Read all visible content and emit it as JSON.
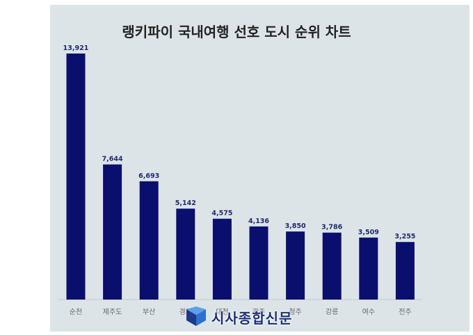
{
  "chart_data": {
    "type": "bar",
    "title": "랭키파이 국내여행 선호 도시 순위 차트",
    "categories": [
      "순천",
      "제주도",
      "부산",
      "경주",
      "대전",
      "광주",
      "청주",
      "강릉",
      "여수",
      "전주"
    ],
    "values": [
      13921,
      7644,
      6693,
      5142,
      4575,
      4136,
      3850,
      3786,
      3509,
      3255
    ],
    "value_labels": [
      "13,921",
      "7,644",
      "6,693",
      "5,142",
      "4,575",
      "4,136",
      "3,850",
      "3,786",
      "3,509",
      "3,255"
    ],
    "ylim": [
      0,
      13921
    ],
    "grid": false,
    "legend": "none",
    "bar_color": "#0a0f6e",
    "panel_color": "#dde4e8",
    "label_color": "#1e2a6b"
  },
  "watermark": {
    "text": "시사종합신문",
    "icon": "newspaper-logo-icon",
    "color": "#1b2f75"
  }
}
